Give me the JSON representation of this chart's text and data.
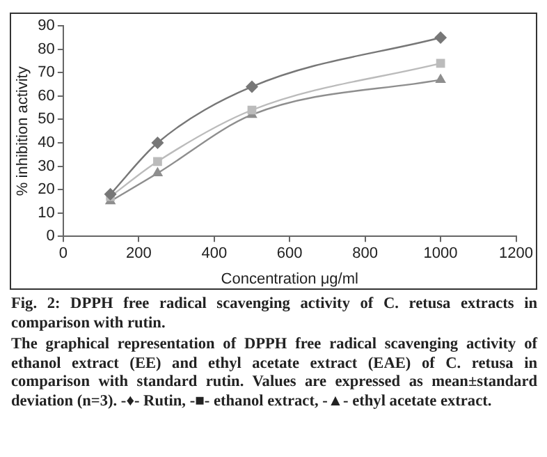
{
  "chart_data": {
    "type": "line",
    "title": "Fig. 2: DPPH free radical scavenging activity of C. retusa extracts in comparison with rutin.",
    "xlabel": "Concentration μg/ml",
    "ylabel": "% inhibition activity",
    "x": [
      125,
      250,
      500,
      1000
    ],
    "series": [
      {
        "color": "#777777",
        "marker": "diamond",
        "values": [
          18,
          40,
          64,
          85
        ]
      },
      {
        "color": "#bbbbbb",
        "marker": "square",
        "values": [
          17,
          32,
          54,
          74
        ]
      },
      {
        "color": "#8e8e8e",
        "marker": "triangle",
        "values": [
          15,
          27,
          52,
          67
        ]
      }
    ],
    "xlim": [
      0,
      1200
    ],
    "xticks": [
      0,
      200,
      400,
      600,
      800,
      1000,
      1200
    ],
    "ylim": [
      0,
      90
    ],
    "yticks": [
      0,
      10,
      20,
      30,
      40,
      50,
      60,
      70,
      80,
      90
    ],
    "grid": false,
    "legend": false,
    "annotations": [
      "The graphical representation of DPPH free radical scavenging activity of ethanol extract (EE) and ethyl acetate extract (EAE) of C. retusa in comparison with standard rutin. Values are expressed as mean±standard deviation (n=3). -♦- Rutin, -■- ethanol extract, -▲- ethyl acetate extract."
    ]
  }
}
